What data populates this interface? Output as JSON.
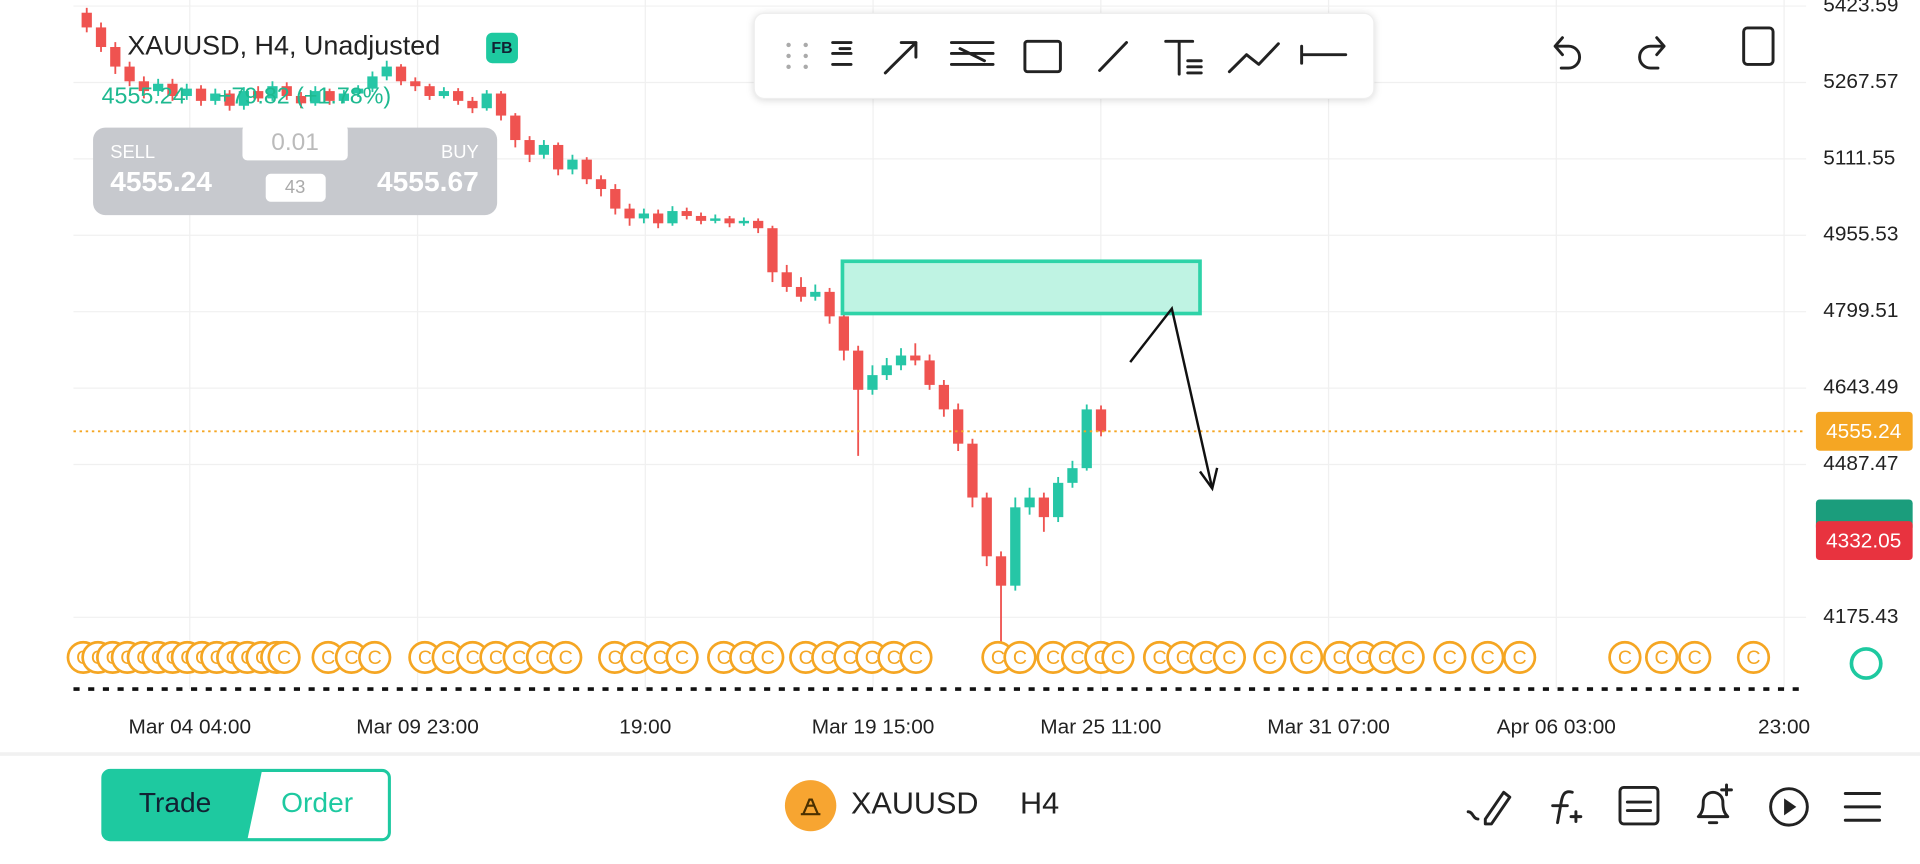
{
  "header": {
    "symbol": "XAUUSD, H4, Unadjusted",
    "badge": "FB",
    "price": "4555.24",
    "change": "+79.82 (+1.78%)"
  },
  "trade_panel": {
    "sell_label": "SELL",
    "sell_price": "4555.24",
    "volume": "0.01",
    "spread": "43",
    "buy_label": "BUY",
    "buy_price": "4555.67"
  },
  "chart_data": {
    "type": "candlestick",
    "open": [
      5410,
      5380,
      5340,
      5300,
      5270,
      5250,
      5265,
      5240,
      5255,
      5230,
      5245,
      5220,
      5250,
      5235,
      5260,
      5240,
      5225,
      5250,
      5230,
      5245,
      5255,
      5280,
      5300,
      5270,
      5260,
      5240,
      5250,
      5230,
      5215,
      5245,
      5200,
      5150,
      5120,
      5140,
      5090,
      5110,
      5070,
      5050,
      5010,
      4990,
      5000,
      4980,
      5005,
      4995,
      4985,
      4990,
      4980,
      4985,
      4970,
      4880,
      4850,
      4830,
      4840,
      4790,
      4720,
      4640,
      4670,
      4690,
      4710,
      4700,
      4650,
      4600,
      4530,
      4420,
      4300,
      4240,
      4400,
      4420,
      4380,
      4450,
      4480,
      4600
    ],
    "high": [
      5420,
      5390,
      5350,
      5310,
      5280,
      5275,
      5275,
      5265,
      5262,
      5255,
      5252,
      5258,
      5260,
      5270,
      5268,
      5248,
      5260,
      5255,
      5252,
      5262,
      5290,
      5312,
      5305,
      5278,
      5265,
      5258,
      5256,
      5238,
      5252,
      5250,
      5205,
      5158,
      5150,
      5145,
      5120,
      5115,
      5078,
      5060,
      5020,
      5010,
      5008,
      5015,
      5012,
      5002,
      4998,
      4995,
      4992,
      4990,
      4975,
      4895,
      4870,
      4855,
      4848,
      4800,
      4730,
      4690,
      4705,
      4725,
      4735,
      4712,
      4660,
      4612,
      4540,
      4430,
      4310,
      4420,
      4440,
      4430,
      4462,
      4495,
      4610,
      4608
    ],
    "low": [
      5370,
      5330,
      5285,
      5260,
      5235,
      5240,
      5230,
      5232,
      5220,
      5222,
      5210,
      5212,
      5228,
      5230,
      5232,
      5215,
      5220,
      5222,
      5225,
      5238,
      5248,
      5272,
      5262,
      5250,
      5232,
      5235,
      5222,
      5205,
      5210,
      5190,
      5135,
      5105,
      5112,
      5078,
      5080,
      5060,
      5035,
      4998,
      4975,
      4980,
      4970,
      4975,
      4988,
      4978,
      4980,
      4972,
      4975,
      4960,
      4860,
      4840,
      4820,
      4822,
      4775,
      4700,
      4505,
      4630,
      4660,
      4680,
      4690,
      4640,
      4585,
      4515,
      4400,
      4280,
      4108,
      4230,
      4385,
      4350,
      4370,
      4440,
      4475,
      4545
    ],
    "close": [
      5380,
      5340,
      5300,
      5270,
      5250,
      5265,
      5240,
      5255,
      5230,
      5245,
      5220,
      5250,
      5235,
      5260,
      5240,
      5225,
      5250,
      5230,
      5245,
      5255,
      5280,
      5300,
      5270,
      5260,
      5240,
      5250,
      5230,
      5215,
      5245,
      5200,
      5150,
      5120,
      5140,
      5090,
      5110,
      5070,
      5050,
      5010,
      4990,
      5000,
      4980,
      5005,
      4995,
      4985,
      4990,
      4980,
      4985,
      4970,
      4880,
      4850,
      4830,
      4840,
      4790,
      4720,
      4640,
      4670,
      4690,
      4710,
      4700,
      4650,
      4600,
      4530,
      4420,
      4300,
      4240,
      4400,
      4420,
      4380,
      4450,
      4480,
      4600,
      4555
    ],
    "up_color": "#26c6a6",
    "down_color": "#ef5350",
    "ylim": [
      4029,
      5436
    ],
    "yticks": [
      5423.59,
      5267.57,
      5111.55,
      4955.53,
      4799.51,
      4643.49,
      4487.47,
      4175.43
    ],
    "xtick_labels": [
      "Mar 04 04:00",
      "Mar 09 23:00",
      "19:00",
      "Mar 19 15:00",
      "Mar 25 11:00",
      "Mar 31 07:00",
      "Apr 06 03:00",
      "23:00"
    ],
    "grid": true,
    "price_line": {
      "value": 4555.24,
      "color": "#f5a623"
    },
    "price_labels": [
      {
        "value": 4555.24,
        "color": "#f5a623"
      },
      {
        "value": 4332.05,
        "color": "#e8333f"
      }
    ]
  },
  "event_marker": "C",
  "footer": {
    "trade": "Trade",
    "order": "Order",
    "symbol": "XAUUSD",
    "timeframe": "H4"
  }
}
